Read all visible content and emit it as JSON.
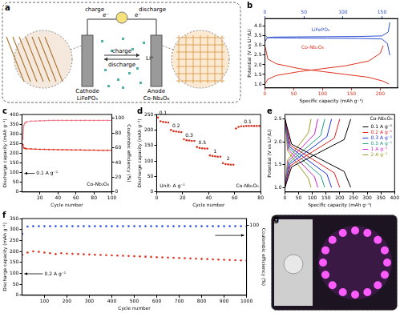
{
  "diagram": {
    "panel_label": "a",
    "texts": {
      "charge_top": "charge",
      "e_left": "e⁻",
      "e_right": "e⁻",
      "discharge_top": "discharge",
      "charge_arrow": "charge",
      "discharge_arrow": "discharge",
      "ion": "Li⁺",
      "cathode": "Cathode",
      "cathode_material": "LiFePO₄",
      "anode": "Anode",
      "anode_material": "Co-Nb₂O₆"
    }
  },
  "photo": {
    "panel_label": "g"
  },
  "chart_data": [
    {
      "panel_label": "b",
      "type": "line",
      "grid": false,
      "x_label": "Specific capacity (mAh g⁻¹)",
      "y_label": "Potential (V vs Li⁺/Li)",
      "xlim": [
        0,
        230
      ],
      "xticks": [
        0,
        50,
        100,
        150,
        200
      ],
      "x2lim": [
        0,
        170
      ],
      "x2ticks": [
        0,
        50,
        100,
        150
      ],
      "ylim": [
        0.8,
        4.4
      ],
      "yticks": [
        {
          "value": 1,
          "label": "1.0"
        },
        1.5,
        {
          "value": 2,
          "label": "2.0"
        },
        2.5,
        {
          "value": 3,
          "label": "3.0"
        },
        3.5,
        {
          "value": 4,
          "label": "4.0"
        }
      ],
      "series": [
        {
          "name": "LiFePO₄",
          "color": "#2f4fd0",
          "axis": "x2",
          "x": [
            0,
            3,
            10,
            40,
            80,
            120,
            150,
            158,
            160,
            null,
            0,
            3,
            10,
            40,
            80,
            120,
            150,
            157,
            160
          ],
          "values": [
            3.2,
            3.4,
            3.44,
            3.45,
            3.46,
            3.47,
            3.5,
            3.7,
            4.2,
            null,
            3.55,
            3.42,
            3.4,
            3.39,
            3.38,
            3.37,
            3.34,
            3.1,
            2.5
          ]
        },
        {
          "name": "Co-Nb₂O₆",
          "color": "#e0301e",
          "x": [
            0,
            5,
            20,
            60,
            100,
            140,
            180,
            200,
            205,
            null,
            0,
            5,
            20,
            60,
            100,
            140,
            180,
            205,
            215
          ],
          "values": [
            1.0,
            1.25,
            1.45,
            1.65,
            1.8,
            1.95,
            2.2,
            2.6,
            3.0,
            null,
            3.0,
            2.3,
            2.05,
            1.8,
            1.65,
            1.5,
            1.35,
            1.15,
            1.0
          ]
        }
      ]
    },
    {
      "panel_label": "c",
      "type": "line",
      "marker": "circle",
      "grid": false,
      "x_label": "Cycle number",
      "y_label": "Discharge capacity (mAh g⁻¹)",
      "y2_label": "Coulombic efficiency (%)",
      "annotations": [
        "0.1 A g⁻¹",
        "Co-Nb₂O₆"
      ],
      "xlim": [
        0,
        100
      ],
      "xticks": [
        20,
        40,
        60,
        80,
        100
      ],
      "ylim": [
        0,
        400
      ],
      "yticks": [
        0,
        50,
        100,
        150,
        200,
        250,
        300,
        350,
        400
      ],
      "y2lim": [
        0,
        105
      ],
      "y2ticks": [
        0,
        20,
        40,
        60,
        80,
        100
      ],
      "x": [
        1,
        2,
        3,
        4,
        5,
        10,
        15,
        20,
        25,
        30,
        35,
        40,
        45,
        50,
        55,
        60,
        65,
        70,
        75,
        80,
        85,
        90,
        95,
        100
      ],
      "series": [
        {
          "color": "#e0301e",
          "values": [
            245,
            228,
            225,
            224,
            223,
            222,
            221,
            220,
            220,
            219,
            219,
            218,
            218,
            218,
            217,
            217,
            217,
            216,
            216,
            216,
            215,
            215,
            215,
            215
          ]
        },
        {
          "color": "#f07a8a",
          "axis": "y2",
          "values": [
            72,
            90,
            93,
            94,
            95,
            96,
            96,
            96.5,
            96.5,
            97,
            97,
            97,
            97,
            97,
            97,
            97,
            97,
            97,
            97,
            97,
            97,
            97,
            97,
            97
          ]
        }
      ]
    },
    {
      "panel_label": "d",
      "type": "scatter",
      "marker": "circle",
      "grid": false,
      "x_label": "Cycle number",
      "y_label": "Discharge capacity (mAh g⁻¹)",
      "annotations": [
        "Co-Nb₂O₆",
        "Unit: A g⁻¹"
      ],
      "xlim": [
        0,
        80
      ],
      "xticks": [
        0,
        20,
        40,
        60,
        80
      ],
      "ylim": [
        0,
        250
      ],
      "yticks": [
        0,
        50,
        100,
        150,
        200,
        250
      ],
      "series": [
        {
          "name": "0.1",
          "color": "#e0301e",
          "x": [
            1,
            3,
            5,
            7,
            9
          ],
          "values": [
            240,
            228,
            226,
            225,
            224
          ]
        },
        {
          "name": "0.2",
          "color": "#e0301e",
          "x": [
            11,
            13,
            15,
            17,
            19
          ],
          "values": [
            200,
            196,
            195,
            194,
            193
          ]
        },
        {
          "name": "0.3",
          "color": "#e0301e",
          "x": [
            21,
            23,
            25,
            27,
            29
          ],
          "values": [
            170,
            167,
            166,
            165,
            165
          ]
        },
        {
          "name": "0.5",
          "color": "#e0301e",
          "x": [
            31,
            33,
            35,
            37,
            39
          ],
          "values": [
            145,
            142,
            141,
            140,
            140
          ]
        },
        {
          "name": "1",
          "color": "#e0301e",
          "x": [
            41,
            43,
            45,
            47,
            49
          ],
          "values": [
            118,
            116,
            115,
            114,
            114
          ]
        },
        {
          "name": "2",
          "color": "#e0301e",
          "x": [
            51,
            53,
            55,
            57,
            59
          ],
          "values": [
            93,
            90,
            89,
            88,
            88
          ]
        },
        {
          "name": "0.1",
          "color": "#e0301e",
          "x": [
            61,
            63,
            65,
            67,
            69,
            71,
            73,
            75,
            77,
            79
          ],
          "values": [
            205,
            210,
            212,
            212,
            213,
            213,
            213,
            213,
            213,
            213
          ]
        }
      ]
    },
    {
      "panel_label": "e",
      "type": "line",
      "grid": false,
      "legend": "upper right",
      "x_label": "Specific capacity (mAh g⁻¹)",
      "y_label": "Potential (V vs Li⁺/Li)",
      "annotations": [
        "Co-Nb₂O₆"
      ],
      "xlim": [
        0,
        400
      ],
      "xticks": [
        0,
        50,
        100,
        150,
        200,
        250,
        300,
        350,
        400
      ],
      "ylim": [
        0.9,
        2.6
      ],
      "yticks": [
        {
          "value": 1,
          "label": "1.0"
        },
        1.5,
        {
          "value": 2,
          "label": "2.0"
        },
        2.5
      ],
      "series": [
        {
          "name": "0.1 A g⁻¹",
          "color": "#000000",
          "x": [
            0,
            24,
            120,
            216,
            240,
            null,
            0,
            24,
            120,
            216,
            240
          ],
          "values": [
            1.0,
            1.45,
            1.75,
            2.05,
            2.5,
            null,
            2.5,
            1.95,
            1.65,
            1.35,
            1.0
          ]
        },
        {
          "name": "0.2 A g⁻¹",
          "color": "#e02020",
          "x": [
            0,
            20,
            100,
            180,
            200,
            null,
            0,
            20,
            100,
            180,
            200
          ],
          "values": [
            1.0,
            1.48,
            1.78,
            2.08,
            2.5,
            null,
            2.5,
            1.92,
            1.62,
            1.32,
            1.0
          ]
        },
        {
          "name": "0.3 A g⁻¹",
          "color": "#2030e0",
          "x": [
            0,
            17,
            85,
            153,
            170,
            null,
            0,
            17,
            85,
            153,
            170
          ],
          "values": [
            1.0,
            1.51,
            1.81,
            2.11,
            2.5,
            null,
            2.5,
            1.89,
            1.59,
            1.29,
            1.0
          ]
        },
        {
          "name": "0.5 A g⁻¹",
          "color": "#20a080",
          "x": [
            0,
            14.5,
            72.5,
            130.5,
            145,
            null,
            0,
            14.5,
            72.5,
            130.5,
            145
          ],
          "values": [
            1.0,
            1.54,
            1.84,
            2.14,
            2.5,
            null,
            2.5,
            1.86,
            1.56,
            1.26,
            1.0
          ]
        },
        {
          "name": "1 A g⁻¹",
          "color": "#d020d0",
          "x": [
            0,
            12,
            60,
            108,
            120,
            null,
            0,
            12,
            60,
            108,
            120
          ],
          "values": [
            1.0,
            1.57,
            1.87,
            2.17,
            2.5,
            null,
            2.5,
            1.83,
            1.53,
            1.23,
            1.0
          ]
        },
        {
          "name": "2 A g⁻¹",
          "color": "#9a9a20",
          "x": [
            0,
            9.5,
            47.5,
            85.5,
            95,
            null,
            0,
            9.5,
            47.5,
            85.5,
            95
          ],
          "values": [
            1.0,
            1.6,
            1.9,
            2.2,
            2.5,
            null,
            2.5,
            1.8,
            1.5,
            1.2,
            1.0
          ]
        }
      ]
    },
    {
      "panel_label": "f",
      "type": "scatter",
      "marker": "circle",
      "grid": false,
      "x_label": "Cycle number",
      "y_label": "Discharge capacity (mAh g⁻¹)",
      "y2_label": "Coulombic efficiency (%)",
      "annotations": [
        "0.2 A g⁻¹"
      ],
      "xlim": [
        0,
        1000
      ],
      "xticks": [
        100,
        200,
        300,
        400,
        500,
        600,
        700,
        800,
        900,
        1000
      ],
      "ylim": [
        0,
        350
      ],
      "yticks": [
        0,
        50,
        100,
        150,
        200,
        250,
        300,
        350
      ],
      "y2lim": [
        0,
        110
      ],
      "y2ticks": [
        100
      ],
      "x": [
        1,
        25,
        50,
        75,
        100,
        125,
        150,
        175,
        200,
        225,
        250,
        275,
        300,
        325,
        350,
        375,
        400,
        425,
        450,
        475,
        500,
        525,
        550,
        575,
        600,
        625,
        650,
        675,
        700,
        725,
        750,
        775,
        800,
        825,
        850,
        875,
        900,
        925,
        950,
        975,
        1000
      ],
      "series": [
        {
          "color": "#e0301e",
          "values": [
            185,
            195,
            200,
            198,
            195,
            192,
            188,
            192,
            190,
            189,
            188,
            187,
            186,
            185,
            184,
            183,
            182,
            181,
            180,
            179,
            178,
            177,
            176,
            175,
            174,
            173,
            172,
            171,
            170,
            169,
            168,
            167,
            166,
            165,
            164,
            163,
            162,
            161,
            160,
            159,
            158
          ]
        },
        {
          "color": "#3050e0",
          "axis": "y2",
          "values": [
            88,
            98.5,
            99,
            99,
            99,
            99,
            99,
            99,
            99,
            99,
            99,
            99,
            99,
            99,
            99,
            99,
            99,
            99,
            99,
            99,
            99,
            99,
            99,
            99,
            99,
            99,
            99,
            99,
            99,
            99,
            99,
            99,
            99,
            99,
            99,
            99,
            99,
            99,
            99,
            99,
            99
          ]
        }
      ]
    }
  ]
}
